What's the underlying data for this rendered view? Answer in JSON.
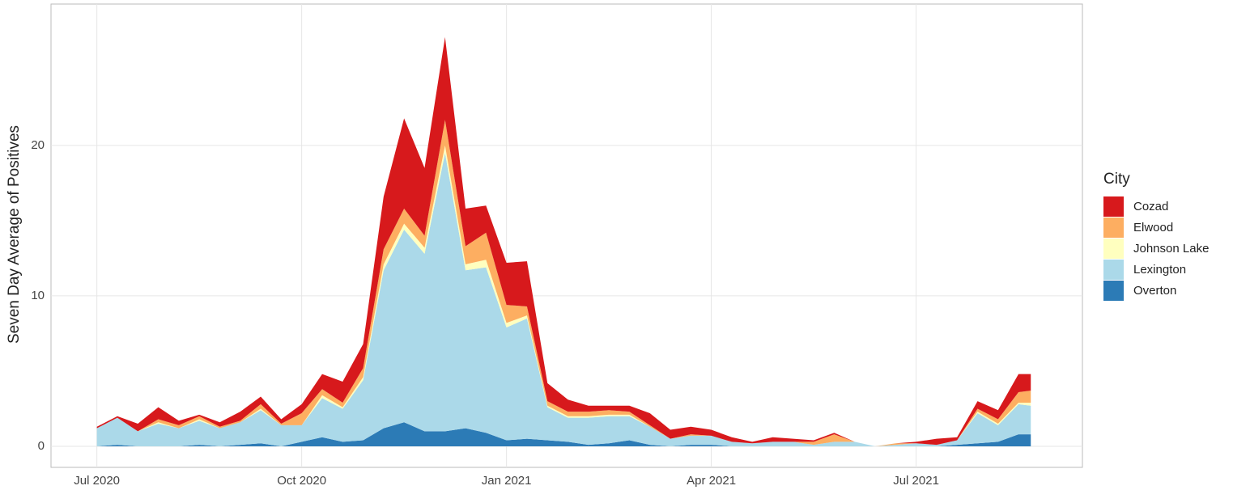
{
  "chart_data": {
    "type": "stacked-area",
    "y_label": "Seven Day Average of Positives",
    "legend_title": "City",
    "legend_position": "right",
    "grid": true,
    "x": [
      2020.5,
      2020.525,
      2020.55,
      2020.575,
      2020.6,
      2020.625,
      2020.65,
      2020.675,
      2020.7,
      2020.725,
      2020.75,
      2020.775,
      2020.8,
      2020.825,
      2020.85,
      2020.875,
      2020.9,
      2020.925,
      2020.95,
      2020.975,
      2021.0,
      2021.025,
      2021.05,
      2021.075,
      2021.1,
      2021.125,
      2021.15,
      2021.175,
      2021.2,
      2021.225,
      2021.25,
      2021.275,
      2021.3,
      2021.325,
      2021.35,
      2021.375,
      2021.4,
      2021.425,
      2021.45,
      2021.475,
      2021.5,
      2021.525,
      2021.55,
      2021.575,
      2021.6,
      2021.625,
      2021.64
    ],
    "xlim": [
      2020.444,
      2021.703
    ],
    "xticks": [
      {
        "value": 2020.5,
        "label": "Jul 2020"
      },
      {
        "value": 2020.75,
        "label": "Oct 2020"
      },
      {
        "value": 2021.0,
        "label": "Jan 2021"
      },
      {
        "value": 2021.25,
        "label": "Apr 2021"
      },
      {
        "value": 2021.5,
        "label": "Jul 2021"
      }
    ],
    "ylim": [
      -1.4,
      29.4
    ],
    "yticks": [
      0,
      10,
      20
    ],
    "series": [
      {
        "name": "Cozad",
        "color": "#d7191c",
        "values": [
          0.1,
          0.1,
          0.5,
          0.8,
          0.3,
          0.1,
          0.3,
          0.6,
          0.5,
          0.3,
          0.6,
          1.0,
          1.4,
          1.6,
          3.5,
          6.0,
          4.5,
          5.5,
          2.5,
          1.8,
          2.8,
          3.0,
          1.2,
          0.8,
          0.4,
          0.3,
          0.4,
          0.8,
          0.6,
          0.5,
          0.4,
          0.3,
          0.1,
          0.3,
          0.2,
          0.1,
          0.1,
          0,
          0,
          0,
          0.1,
          0.4,
          0.2,
          0.5,
          0.6,
          1.2,
          1.1
        ]
      },
      {
        "name": "Elwood",
        "color": "#fdae61",
        "values": [
          0,
          0,
          0,
          0.2,
          0.2,
          0.2,
          0.1,
          0.1,
          0.3,
          0.1,
          0.8,
          0.4,
          0.3,
          0.6,
          1.0,
          1.0,
          0.8,
          1.7,
          1.2,
          1.8,
          1.2,
          0.6,
          0.3,
          0.3,
          0.3,
          0.3,
          0.2,
          0.1,
          0,
          0.1,
          0,
          0,
          0,
          0,
          0,
          0.2,
          0.5,
          0,
          0,
          0.1,
          0,
          0,
          0,
          0.2,
          0.3,
          0.7,
          0.8
        ]
      },
      {
        "name": "Johnson Lake",
        "color": "#ffffbf",
        "values": [
          0,
          0,
          0,
          0.1,
          0,
          0.1,
          0,
          0,
          0.1,
          0,
          0,
          0.2,
          0.1,
          0.2,
          0.4,
          0.4,
          0.4,
          0.5,
          0.4,
          0.5,
          0.3,
          0.2,
          0.1,
          0.1,
          0.1,
          0.1,
          0.1,
          0,
          0,
          0,
          0,
          0,
          0,
          0,
          0,
          0,
          0,
          0,
          0,
          0,
          0,
          0,
          0,
          0.1,
          0.1,
          0.1,
          0.2
        ]
      },
      {
        "name": "Lexington",
        "color": "#abd9e9",
        "values": [
          1.2,
          1.8,
          1.0,
          1.5,
          1.2,
          1.6,
          1.2,
          1.5,
          2.2,
          1.4,
          1.1,
          2.6,
          2.2,
          4.0,
          10.5,
          12.8,
          11.8,
          18.5,
          10.5,
          11.0,
          7.5,
          8.0,
          2.2,
          1.6,
          1.8,
          1.8,
          1.6,
          1.2,
          0.5,
          0.6,
          0.6,
          0.3,
          0.2,
          0.3,
          0.3,
          0.1,
          0.3,
          0.3,
          0,
          0.1,
          0.2,
          0.1,
          0.3,
          2.0,
          1.1,
          2.0,
          1.9
        ]
      },
      {
        "name": "Overton",
        "color": "#2c7bb6",
        "values": [
          0,
          0.1,
          0,
          0,
          0,
          0.1,
          0,
          0.1,
          0.2,
          0,
          0.3,
          0.6,
          0.3,
          0.4,
          1.2,
          1.6,
          1.0,
          1.0,
          1.2,
          0.9,
          0.4,
          0.5,
          0.4,
          0.3,
          0.1,
          0.2,
          0.4,
          0.1,
          0,
          0.1,
          0.1,
          0,
          0,
          0,
          0,
          0,
          0,
          0,
          0,
          0,
          0,
          0,
          0.1,
          0.2,
          0.3,
          0.8,
          0.8
        ]
      }
    ]
  }
}
